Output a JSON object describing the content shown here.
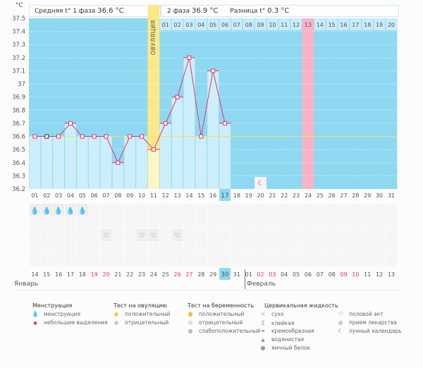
{
  "header": {
    "unit": "°C",
    "phase1_label": "Средняя t° 1 фаза",
    "phase1_value": "36.6 °C",
    "phase2_label": "2 фаза",
    "phase2_value": "36.9 °C",
    "diff_label": "Разница t°",
    "diff_value": "0.3 °C",
    "ovulation_label": "ОВУЛЯЦИЯ"
  },
  "chart_data": {
    "type": "line",
    "ylabel": "°C",
    "ylim": [
      36.2,
      37.5
    ],
    "yticks": [
      "37.5",
      "37.4",
      "37.3",
      "37.2",
      "37.1",
      "37",
      "36.9",
      "36.8",
      "36.7",
      "36.6",
      "36.5",
      "36.4",
      "36.3",
      "36.2"
    ],
    "cycle_days": [
      "01",
      "02",
      "03",
      "04",
      "05",
      "06",
      "07",
      "08",
      "09",
      "10",
      "11",
      "12",
      "13",
      "14",
      "15",
      "16",
      "17",
      "18",
      "19",
      "20",
      "21",
      "22",
      "23",
      "24",
      "25",
      "26",
      "27",
      "28",
      "29",
      "30",
      "31"
    ],
    "temperatures": [
      36.6,
      36.6,
      36.6,
      36.7,
      36.6,
      36.6,
      36.6,
      36.4,
      36.6,
      36.6,
      36.5,
      36.7,
      36.9,
      37.2,
      36.6,
      37.1,
      36.7
    ],
    "coverline": 36.6,
    "ovulation_day": 11,
    "current_day": 17,
    "phase2_days": [
      "01",
      "02",
      "03",
      "04",
      "05",
      "06",
      "07",
      "08",
      "09",
      "10",
      "11",
      "12",
      "13",
      "14",
      "15",
      "16",
      "17",
      "18",
      "19",
      "20"
    ],
    "phase2_highlight_index": 12,
    "moon_day": 20,
    "menstruation_days": [
      1,
      2,
      3,
      4,
      5
    ],
    "intercourse_days": [
      7,
      10,
      11,
      13
    ],
    "dates": [
      "14",
      "15",
      "16",
      "17",
      "18",
      "19",
      "20",
      "21",
      "22",
      "23",
      "24",
      "25",
      "26",
      "27",
      "28",
      "29",
      "30",
      "31",
      "01",
      "02",
      "03",
      "04",
      "05",
      "06",
      "07",
      "08",
      "09",
      "10",
      "11",
      "12",
      "13"
    ],
    "weekend_dates_idx": [
      5,
      6,
      12,
      13,
      19,
      20,
      26,
      27
    ],
    "today_date_idx": 16,
    "months": [
      "Январь",
      "Февраль"
    ]
  },
  "legend": {
    "menstruation": {
      "title": "Менструация",
      "items": [
        "менструация",
        "небольшие выделения"
      ]
    },
    "ovulation_test": {
      "title": "Тест на овуляцию",
      "items": [
        "положительный",
        "отрицательный"
      ]
    },
    "pregnancy_test": {
      "title": "Тест на беременность",
      "items": [
        "положительный",
        "отрицательный",
        "слабоположительный"
      ]
    },
    "cervical": {
      "title": "Цервикальная жидкость",
      "items": [
        "сухо",
        "клейкая",
        "кремообразная",
        "водянистая",
        "яичный белок"
      ]
    },
    "other": {
      "items": [
        "половой акт",
        "прием лекарства",
        "лунный календарь"
      ]
    }
  },
  "colors": {
    "sky": "#8fd8f2",
    "bar": "#cdeefb",
    "ovulation": "#fbe88a",
    "ovulation_bar": "#fdf6c8",
    "pink": "#f9b3c6",
    "line": "#e8336b",
    "coverline": "#f3e35a"
  }
}
